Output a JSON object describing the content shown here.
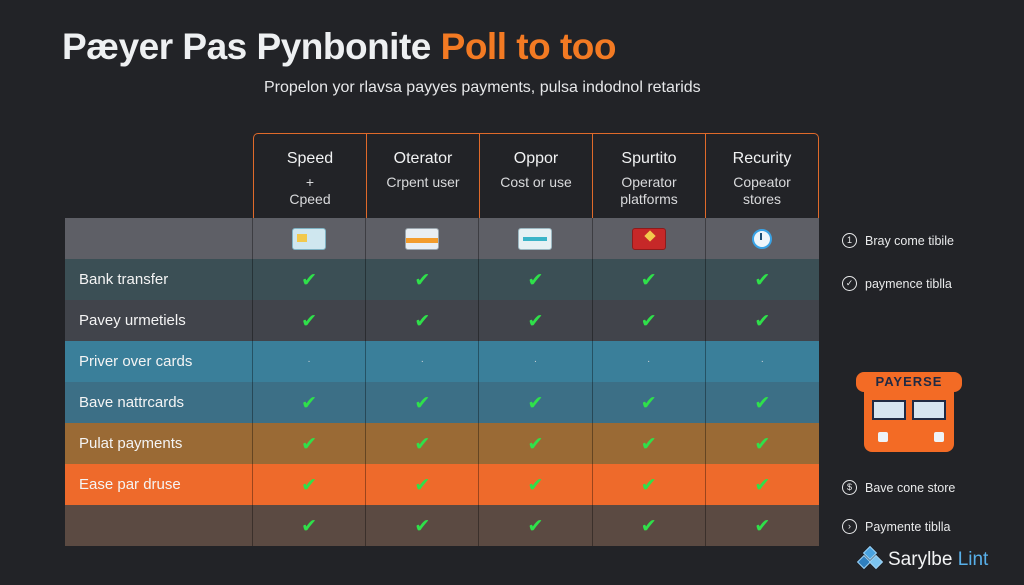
{
  "title": {
    "main": "Pæyer Pas Pynbonite ",
    "accent": "Poll to too"
  },
  "subtitle": "Propelon yor rlavsa payyes payments, pulsa indodnol retarids",
  "columns": [
    {
      "title": "Speed",
      "sub": "+\nCpeed"
    },
    {
      "title": "Oterator",
      "sub": "Crpent user"
    },
    {
      "title": "Oppor",
      "sub": "Cost or use"
    },
    {
      "title": "Spurtito",
      "sub": "Operator\nplatforms"
    },
    {
      "title": "Recurity",
      "sub": "Copeator\nstores"
    }
  ],
  "icon_row": {
    "bg": "#5e5f66",
    "icons": [
      "keypad-card-icon",
      "orange-credit-card-icon",
      "teal-credit-card-icon",
      "red-flag-card-icon",
      "clock-icon"
    ]
  },
  "rows": [
    {
      "label": "Bank transfer",
      "bg": "#3b4f55",
      "cells": [
        "check",
        "check",
        "check",
        "check",
        "check"
      ]
    },
    {
      "label": "Pavey urmetiels",
      "bg": "#41444b",
      "cells": [
        "check",
        "check",
        "check",
        "check",
        "check"
      ]
    },
    {
      "label": "Priver over cards",
      "bg": "#3a7f9a",
      "cells": [
        "dot",
        "dot",
        "dot",
        "dot",
        "dot"
      ]
    },
    {
      "label": "Bave nattrcards",
      "bg": "#3c6f86",
      "cells": [
        "check",
        "check",
        "check",
        "check",
        "check"
      ]
    },
    {
      "label": "Pulat payments",
      "bg": "#9a6a35",
      "cells": [
        "check",
        "check",
        "check",
        "check",
        "check"
      ]
    },
    {
      "label": "Ease par druse",
      "bg": "#ee6a2b",
      "cells": [
        "check",
        "check",
        "check",
        "check",
        "check"
      ]
    },
    {
      "label": "",
      "bg": "#5b4a42",
      "cells": [
        "check",
        "check",
        "check",
        "check",
        "check"
      ]
    }
  ],
  "notes": [
    {
      "icon": "1",
      "text": "Bray come tibile"
    },
    {
      "icon": "✓",
      "text": "paymence tiblla"
    },
    {
      "icon": "$",
      "text": "Bave cone store"
    },
    {
      "icon": "›",
      "text": "Paymente tiblla"
    }
  ],
  "kiosk": {
    "banner": "PAYERSE"
  },
  "brand": {
    "part1": "Sarylbe ",
    "part2": "Lint"
  },
  "colors": {
    "accent": "#f37a23",
    "check": "#2fe04a",
    "background": "#222327"
  }
}
